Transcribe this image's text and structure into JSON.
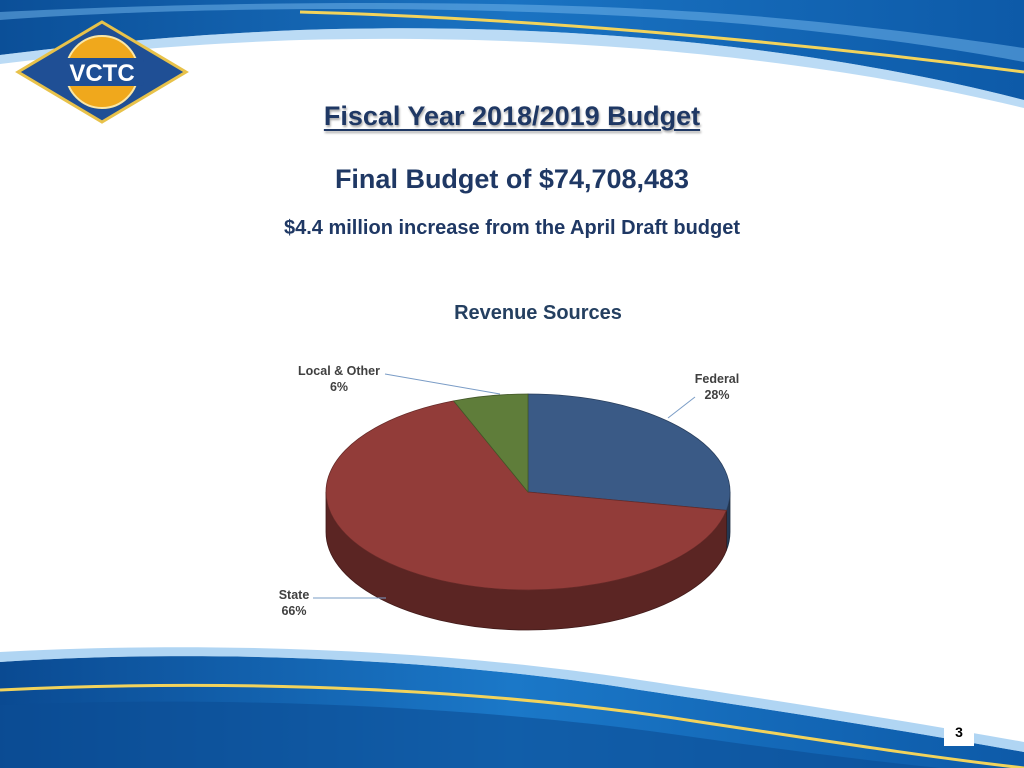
{
  "logo": {
    "text": "VCTC"
  },
  "slide": {
    "title": "Fiscal Year 2018/2019 Budget",
    "subtitle": "Final Budget of $74,708,483",
    "subtext": "$4.4 million increase from the April Draft budget",
    "page_number": "3"
  },
  "colors": {
    "brand_blue": "#1565b0",
    "brand_gold": "#f0a81c",
    "title_text": "#1f3864"
  },
  "chart_data": {
    "type": "pie",
    "title": "Revenue Sources",
    "slices": [
      {
        "label": "Federal",
        "value": 28,
        "value_label": "28%",
        "color": "#3a5a86"
      },
      {
        "label": "State",
        "value": 66,
        "value_label": "66%",
        "color": "#923c39"
      },
      {
        "label": "Local & Other",
        "value": 6,
        "value_label": "6%",
        "color": "#5f7d3a"
      }
    ]
  }
}
